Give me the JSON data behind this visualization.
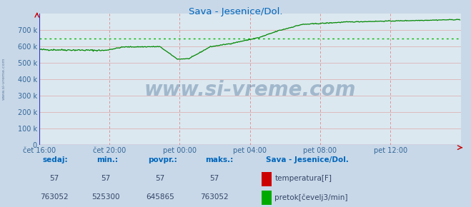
{
  "title": "Sava - Jesenice/Dol.",
  "title_color": "#0066bb",
  "bg_color": "#c8d8e8",
  "plot_bg_color": "#dce8f0",
  "grid_color_v": "#dd8888",
  "grid_color_h": "#ddaaaa",
  "avg_line_color": "#00bb00",
  "avg_value": 645865,
  "ymax": 800000,
  "yticks": [
    0,
    100000,
    200000,
    300000,
    400000,
    500000,
    600000,
    700000
  ],
  "ytick_labels": [
    "0",
    "100 k",
    "200 k",
    "300 k",
    "400 k",
    "500 k",
    "600 k",
    "700 k"
  ],
  "xtick_labels": [
    "čet 16:00",
    "čet 20:00",
    "pet 00:00",
    "pet 04:00",
    "pet 08:00",
    "pet 12:00"
  ],
  "xtick_positions": [
    0,
    96,
    192,
    288,
    384,
    480
  ],
  "total_points": 576,
  "line_color_temp": "#cc0000",
  "line_color_flow": "#008800",
  "watermark": "www.si-vreme.com",
  "watermark_color": "#1a4a7a",
  "footer_color": "#0066bb",
  "footer_title": "Sava - Jesenice/Dol.",
  "sedaj_label": "sedaj:",
  "min_label": "min.:",
  "povpr_label": "povpr.:",
  "maks_label": "maks.:",
  "temp_sedaj": 57,
  "temp_min": 57,
  "temp_povpr": 57,
  "temp_maks": 57,
  "flow_sedaj": 763052,
  "flow_min": 525300,
  "flow_povpr": 645865,
  "flow_maks": 763052,
  "legend_temp": "temperatura[F]",
  "legend_flow": "pretok[čevelj3/min]",
  "temp_legend_color": "#cc0000",
  "flow_legend_color": "#00aa00",
  "left_label": "www.si-vreme.com"
}
